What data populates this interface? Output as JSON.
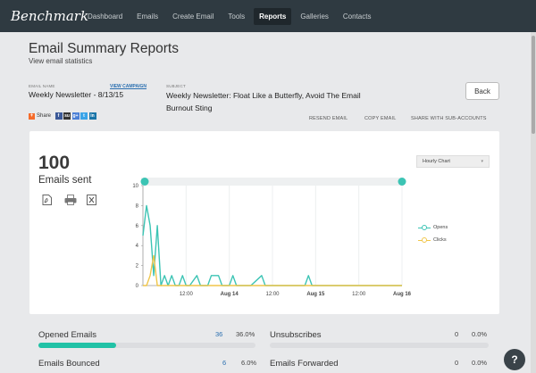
{
  "nav": {
    "logo": "Benchmark",
    "items": [
      {
        "label": "Dashboard",
        "active": false
      },
      {
        "label": "Emails",
        "active": false
      },
      {
        "label": "Create Email",
        "active": false
      },
      {
        "label": "Tools",
        "active": false
      },
      {
        "label": "Reports",
        "active": true
      },
      {
        "label": "Galleries",
        "active": false
      },
      {
        "label": "Contacts",
        "active": false
      }
    ]
  },
  "header": {
    "title": "Email Summary Reports",
    "subtitle": "View email statistics",
    "email_name_label": "EMAIL NAME",
    "view_campaign": "VIEW CAMPAIGN",
    "email_name": "Weekly Newsletter - 8/13/15",
    "subject_label": "SUBJECT",
    "subject": "Weekly Newsletter: Float Like a Butterfly, Avoid The Email Burnout Sting",
    "back_label": "Back",
    "share_label": "Share",
    "share_icons": [
      "f",
      "su",
      "g+",
      "t",
      "in"
    ],
    "actions": [
      "RESEND EMAIL",
      "COPY EMAIL",
      "SHARE WITH SUB-ACCOUNTS"
    ]
  },
  "summary": {
    "count": "100",
    "count_label": "Emails sent",
    "icons": [
      "pdf-icon",
      "print-icon",
      "excel-icon"
    ],
    "chart_select": "Hourly Chart"
  },
  "chart_data": {
    "type": "line",
    "ylim": [
      0,
      10
    ],
    "yticks": [
      "0",
      "2",
      "4",
      "6",
      "8",
      "10"
    ],
    "xticks": [
      "12:00",
      "Aug 14",
      "12:00",
      "Aug 15",
      "12:00",
      "Aug 16"
    ],
    "xticks_bold": [
      false,
      true,
      false,
      true,
      false,
      true
    ],
    "x_hours": [
      0,
      12,
      24,
      36,
      48,
      60,
      72
    ],
    "series": [
      {
        "name": "Opens",
        "color": "#3cc4b4",
        "points": [
          [
            0,
            5
          ],
          [
            1,
            8
          ],
          [
            2,
            6
          ],
          [
            3,
            1
          ],
          [
            4,
            6
          ],
          [
            5,
            0
          ],
          [
            6,
            1
          ],
          [
            7,
            0
          ],
          [
            8,
            1
          ],
          [
            9,
            0
          ],
          [
            10,
            0
          ],
          [
            11,
            1
          ],
          [
            12,
            0
          ],
          [
            13,
            0
          ],
          [
            15,
            1
          ],
          [
            16,
            0
          ],
          [
            18,
            0
          ],
          [
            19,
            1
          ],
          [
            20,
            1
          ],
          [
            21,
            1
          ],
          [
            22,
            0
          ],
          [
            24,
            0
          ],
          [
            25,
            1
          ],
          [
            26,
            0
          ],
          [
            30,
            0
          ],
          [
            33,
            1
          ],
          [
            34,
            0
          ],
          [
            45,
            0
          ],
          [
            46,
            1
          ],
          [
            47,
            0
          ],
          [
            72,
            0
          ]
        ]
      },
      {
        "name": "Clicks",
        "color": "#f0c64a",
        "points": [
          [
            0,
            0
          ],
          [
            1,
            0
          ],
          [
            2,
            1
          ],
          [
            3,
            3
          ],
          [
            4,
            0
          ],
          [
            5,
            0
          ],
          [
            72,
            0
          ]
        ]
      }
    ]
  },
  "stats": {
    "opened": {
      "label": "Opened Emails",
      "count": "36",
      "pct": "36.0%",
      "fraction": 0.36
    },
    "unsub": {
      "label": "Unsubscribes",
      "count": "0",
      "pct": "0.0%",
      "fraction": 0
    },
    "bounced": {
      "label": "Emails Bounced",
      "count": "6",
      "pct": "6.0%"
    },
    "forwarded": {
      "label": "Emails Forwarded",
      "count": "0",
      "pct": "0.0%"
    }
  }
}
